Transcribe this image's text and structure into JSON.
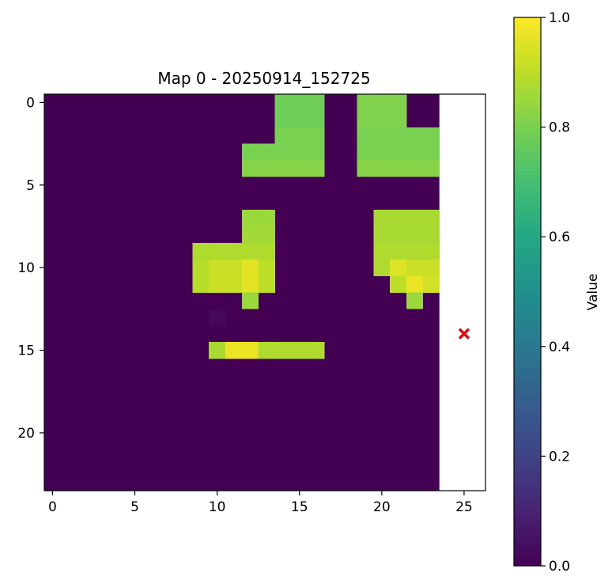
{
  "chart_data": {
    "type": "heatmap",
    "title": "Map 0 - 20250914_152725",
    "xlabel": "",
    "ylabel": "",
    "grid": false,
    "xlim": [
      -0.5,
      26.3
    ],
    "ylim": [
      23.5,
      -0.5
    ],
    "xticks": [
      0,
      5,
      10,
      15,
      20,
      25
    ],
    "yticks": [
      0,
      5,
      10,
      15,
      20
    ],
    "colormap": "viridis",
    "vmin": 0.0,
    "vmax": 1.0,
    "colorbar": {
      "label": "Value",
      "ticks": [
        0.0,
        0.2,
        0.4,
        0.6,
        0.8,
        1.0
      ],
      "tick_labels": [
        "0.0",
        "0.2",
        "0.4",
        "0.6",
        "0.8",
        "1.0"
      ]
    },
    "grid_rows": 24,
    "grid_cols": 24,
    "cells": [
      {
        "row": 0,
        "col": 14,
        "value": 0.78
      },
      {
        "row": 0,
        "col": 15,
        "value": 0.78
      },
      {
        "row": 0,
        "col": 16,
        "value": 0.78
      },
      {
        "row": 0,
        "col": 19,
        "value": 0.81
      },
      {
        "row": 0,
        "col": 20,
        "value": 0.81
      },
      {
        "row": 0,
        "col": 21,
        "value": 0.81
      },
      {
        "row": 1,
        "col": 14,
        "value": 0.78
      },
      {
        "row": 1,
        "col": 15,
        "value": 0.78
      },
      {
        "row": 1,
        "col": 16,
        "value": 0.78
      },
      {
        "row": 1,
        "col": 19,
        "value": 0.81
      },
      {
        "row": 1,
        "col": 20,
        "value": 0.81
      },
      {
        "row": 1,
        "col": 21,
        "value": 0.81
      },
      {
        "row": 2,
        "col": 14,
        "value": 0.8
      },
      {
        "row": 2,
        "col": 15,
        "value": 0.8
      },
      {
        "row": 2,
        "col": 16,
        "value": 0.8
      },
      {
        "row": 2,
        "col": 19,
        "value": 0.8
      },
      {
        "row": 2,
        "col": 20,
        "value": 0.8
      },
      {
        "row": 2,
        "col": 21,
        "value": 0.8
      },
      {
        "row": 2,
        "col": 22,
        "value": 0.8
      },
      {
        "row": 2,
        "col": 23,
        "value": 0.8
      },
      {
        "row": 3,
        "col": 12,
        "value": 0.8
      },
      {
        "row": 3,
        "col": 13,
        "value": 0.8
      },
      {
        "row": 3,
        "col": 14,
        "value": 0.8
      },
      {
        "row": 3,
        "col": 15,
        "value": 0.8
      },
      {
        "row": 3,
        "col": 16,
        "value": 0.8
      },
      {
        "row": 3,
        "col": 19,
        "value": 0.8
      },
      {
        "row": 3,
        "col": 20,
        "value": 0.8
      },
      {
        "row": 3,
        "col": 21,
        "value": 0.8
      },
      {
        "row": 3,
        "col": 22,
        "value": 0.8
      },
      {
        "row": 3,
        "col": 23,
        "value": 0.8
      },
      {
        "row": 4,
        "col": 12,
        "value": 0.82
      },
      {
        "row": 4,
        "col": 13,
        "value": 0.82
      },
      {
        "row": 4,
        "col": 14,
        "value": 0.82
      },
      {
        "row": 4,
        "col": 15,
        "value": 0.82
      },
      {
        "row": 4,
        "col": 16,
        "value": 0.82
      },
      {
        "row": 4,
        "col": 19,
        "value": 0.82
      },
      {
        "row": 4,
        "col": 20,
        "value": 0.82
      },
      {
        "row": 4,
        "col": 21,
        "value": 0.82
      },
      {
        "row": 4,
        "col": 22,
        "value": 0.82
      },
      {
        "row": 4,
        "col": 23,
        "value": 0.82
      },
      {
        "row": 7,
        "col": 12,
        "value": 0.85
      },
      {
        "row": 7,
        "col": 13,
        "value": 0.85
      },
      {
        "row": 7,
        "col": 20,
        "value": 0.87
      },
      {
        "row": 7,
        "col": 21,
        "value": 0.87
      },
      {
        "row": 7,
        "col": 22,
        "value": 0.87
      },
      {
        "row": 7,
        "col": 23,
        "value": 0.87
      },
      {
        "row": 8,
        "col": 12,
        "value": 0.86
      },
      {
        "row": 8,
        "col": 13,
        "value": 0.86
      },
      {
        "row": 8,
        "col": 20,
        "value": 0.87
      },
      {
        "row": 8,
        "col": 21,
        "value": 0.87
      },
      {
        "row": 8,
        "col": 22,
        "value": 0.87
      },
      {
        "row": 8,
        "col": 23,
        "value": 0.87
      },
      {
        "row": 9,
        "col": 9,
        "value": 0.88
      },
      {
        "row": 9,
        "col": 10,
        "value": 0.88
      },
      {
        "row": 9,
        "col": 11,
        "value": 0.88
      },
      {
        "row": 9,
        "col": 12,
        "value": 0.88
      },
      {
        "row": 9,
        "col": 13,
        "value": 0.88
      },
      {
        "row": 9,
        "col": 20,
        "value": 0.88
      },
      {
        "row": 9,
        "col": 21,
        "value": 0.88
      },
      {
        "row": 9,
        "col": 22,
        "value": 0.88
      },
      {
        "row": 9,
        "col": 23,
        "value": 0.88
      },
      {
        "row": 10,
        "col": 9,
        "value": 0.89
      },
      {
        "row": 10,
        "col": 10,
        "value": 0.92
      },
      {
        "row": 10,
        "col": 11,
        "value": 0.92
      },
      {
        "row": 10,
        "col": 12,
        "value": 0.96
      },
      {
        "row": 10,
        "col": 13,
        "value": 0.9
      },
      {
        "row": 10,
        "col": 20,
        "value": 0.88
      },
      {
        "row": 10,
        "col": 21,
        "value": 0.95
      },
      {
        "row": 10,
        "col": 22,
        "value": 0.92
      },
      {
        "row": 10,
        "col": 23,
        "value": 0.92
      },
      {
        "row": 11,
        "col": 9,
        "value": 0.89
      },
      {
        "row": 11,
        "col": 10,
        "value": 0.92
      },
      {
        "row": 11,
        "col": 11,
        "value": 0.92
      },
      {
        "row": 11,
        "col": 12,
        "value": 0.96
      },
      {
        "row": 11,
        "col": 13,
        "value": 0.9
      },
      {
        "row": 11,
        "col": 21,
        "value": 0.9
      },
      {
        "row": 11,
        "col": 22,
        "value": 0.97
      },
      {
        "row": 11,
        "col": 23,
        "value": 0.93
      },
      {
        "row": 12,
        "col": 12,
        "value": 0.85
      },
      {
        "row": 12,
        "col": 22,
        "value": 0.85
      },
      {
        "row": 13,
        "col": 10,
        "value": 0.02
      },
      {
        "row": 15,
        "col": 10,
        "value": 0.87
      },
      {
        "row": 15,
        "col": 11,
        "value": 0.97
      },
      {
        "row": 15,
        "col": 12,
        "value": 0.97
      },
      {
        "row": 15,
        "col": 13,
        "value": 0.88
      },
      {
        "row": 15,
        "col": 14,
        "value": 0.88
      },
      {
        "row": 15,
        "col": 15,
        "value": 0.88
      },
      {
        "row": 15,
        "col": 16,
        "value": 0.88
      }
    ],
    "marker": {
      "x": 25,
      "y": 14,
      "symbol": "x",
      "color": "#e8000b"
    }
  }
}
